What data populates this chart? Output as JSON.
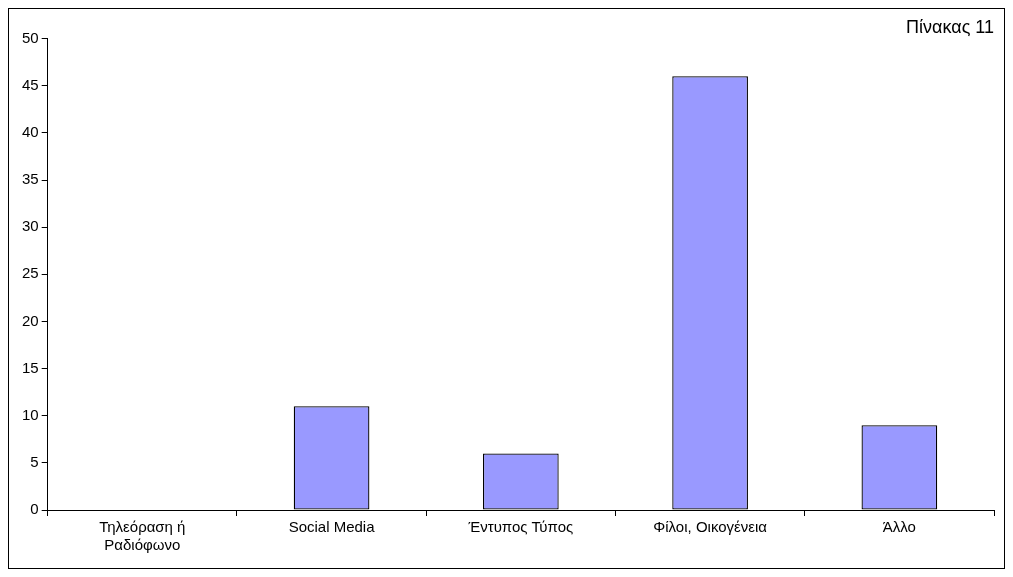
{
  "chart_data": {
    "type": "bar",
    "title": "Πίνακας 11",
    "categories": [
      "Τηλεόραση ή Ραδιόφωνο",
      "Social Media",
      "Έντυπος Τύπος",
      "Φίλοι, Οικογένεια",
      "Άλλο"
    ],
    "values": [
      0,
      11,
      6,
      46,
      9
    ],
    "color": "#9999ff",
    "ylim": [
      0,
      50
    ],
    "yticks": [
      0,
      5,
      10,
      15,
      20,
      25,
      30,
      35,
      40,
      45,
      50
    ],
    "grid": false,
    "legend": false
  }
}
